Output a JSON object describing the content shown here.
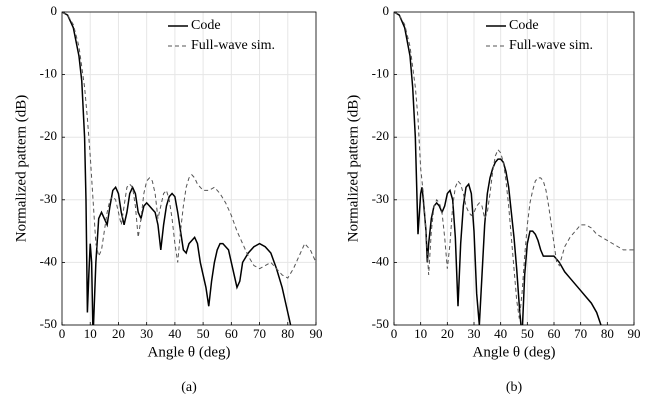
{
  "chart_data": [
    {
      "type": "line",
      "caption": "(a)",
      "x_label": "Angle θ (deg)",
      "y_label": "Normalized pattern (dB)",
      "xlim": [
        0,
        90
      ],
      "ylim": [
        -50,
        0
      ],
      "xticks": [
        0,
        10,
        20,
        30,
        40,
        50,
        60,
        70,
        80,
        90
      ],
      "yticks": [
        -50,
        -40,
        -30,
        -20,
        -10,
        0
      ],
      "grid": true,
      "legend": "upper right",
      "series": [
        {
          "name": "Code",
          "color": "#000000",
          "line_style": "solid",
          "x": [
            0,
            2,
            4,
            6,
            7,
            8,
            8.5,
            9,
            9.5,
            10,
            10.5,
            11,
            12,
            13,
            14,
            15,
            16,
            17,
            18,
            19,
            20,
            21,
            22,
            23,
            24,
            25,
            26,
            27,
            28,
            29,
            30,
            31,
            32,
            33,
            34,
            35,
            36,
            37,
            38,
            39,
            40,
            41,
            42,
            43,
            44,
            45,
            46,
            47,
            48,
            49,
            50,
            51,
            52,
            53,
            54,
            55,
            56,
            57,
            58,
            59,
            60,
            61,
            62,
            63,
            64,
            66,
            68,
            70,
            72,
            74,
            76,
            78,
            80,
            82
          ],
          "values": [
            0,
            -0.5,
            -2.5,
            -7,
            -11,
            -20,
            -30,
            -48,
            -42,
            -37,
            -40,
            -52,
            -40,
            -33,
            -32,
            -33,
            -34,
            -31,
            -28.5,
            -28,
            -29,
            -32,
            -34,
            -32,
            -29,
            -28,
            -29,
            -32,
            -33,
            -31,
            -30.5,
            -31,
            -31.5,
            -32,
            -34,
            -38,
            -34,
            -31,
            -29.5,
            -29,
            -29.5,
            -32,
            -35,
            -38,
            -38.5,
            -37,
            -36.5,
            -36,
            -37,
            -40,
            -42,
            -44,
            -47,
            -43,
            -40,
            -38,
            -37,
            -37,
            -37.5,
            -38,
            -40,
            -42,
            -44,
            -43,
            -40,
            -38.5,
            -37.5,
            -37,
            -37.5,
            -38.5,
            -41,
            -44,
            -48,
            -52
          ]
        },
        {
          "name": "Full-wave sim.",
          "color": "#555555",
          "line_style": "dashed",
          "x": [
            0,
            2,
            4,
            6,
            8,
            9,
            10,
            11,
            12,
            13,
            14,
            15,
            16,
            17,
            18,
            19,
            20,
            21,
            22,
            23,
            24,
            25,
            26,
            27,
            28,
            29,
            30,
            31,
            32,
            33,
            34,
            35,
            36,
            37,
            38,
            39,
            40,
            41,
            42,
            43,
            44,
            45,
            46,
            47,
            48,
            50,
            52,
            54,
            56,
            58,
            60,
            62,
            64,
            66,
            68,
            70,
            72,
            74,
            76,
            78,
            80,
            82,
            84,
            86,
            88,
            90
          ],
          "values": [
            0,
            -0.5,
            -2,
            -5.5,
            -12,
            -17,
            -23,
            -30,
            -37,
            -39,
            -38,
            -35,
            -32,
            -30,
            -29.5,
            -30,
            -32,
            -34,
            -31,
            -28,
            -27.5,
            -28,
            -31,
            -36,
            -33,
            -29,
            -27,
            -26.5,
            -27,
            -29,
            -33,
            -31,
            -29,
            -28.5,
            -30,
            -33,
            -37,
            -40,
            -35,
            -31,
            -28,
            -26.5,
            -26,
            -26.5,
            -27.5,
            -28.5,
            -28.5,
            -28,
            -29,
            -30.5,
            -32.5,
            -35,
            -37,
            -39,
            -40.5,
            -41,
            -40.5,
            -40,
            -41,
            -42,
            -42.5,
            -41,
            -39,
            -37,
            -38,
            -40
          ]
        }
      ]
    },
    {
      "type": "line",
      "caption": "(b)",
      "x_label": "Angle θ (deg)",
      "y_label": "Normalized pattern (dB)",
      "xlim": [
        0,
        90
      ],
      "ylim": [
        -50,
        0
      ],
      "xticks": [
        0,
        10,
        20,
        30,
        40,
        50,
        60,
        70,
        80,
        90
      ],
      "yticks": [
        -50,
        -40,
        -30,
        -20,
        -10,
        0
      ],
      "grid": true,
      "legend": "upper right",
      "series": [
        {
          "name": "Code",
          "color": "#000000",
          "line_style": "solid",
          "x": [
            0,
            2,
            4,
            6,
            7,
            8,
            9,
            10,
            10.5,
            11,
            12,
            12.5,
            13,
            14,
            15,
            16,
            17,
            18,
            19,
            20,
            21,
            22,
            23,
            24,
            25,
            26,
            27,
            28,
            29,
            30,
            31,
            32,
            33,
            34,
            35,
            36,
            37,
            38,
            39,
            40,
            41,
            42,
            43,
            44,
            45,
            46,
            47,
            48,
            49,
            50,
            51,
            52,
            53,
            54,
            55,
            56,
            58,
            60,
            62,
            64,
            66,
            68,
            70,
            72,
            74,
            76,
            78
          ],
          "values": [
            0,
            -0.5,
            -2.5,
            -7,
            -12,
            -20,
            -35.5,
            -29,
            -28,
            -30,
            -35,
            -40,
            -37,
            -33,
            -31,
            -30.5,
            -31,
            -32,
            -31,
            -29,
            -28.5,
            -30,
            -36,
            -47,
            -37,
            -31,
            -28,
            -27.5,
            -29,
            -35,
            -45,
            -50,
            -42,
            -34,
            -29,
            -26.5,
            -25,
            -24,
            -23.5,
            -23.5,
            -24,
            -25.5,
            -28,
            -32,
            -36,
            -41,
            -47,
            -52,
            -42,
            -37,
            -35,
            -35,
            -35.5,
            -36.5,
            -38,
            -39,
            -39,
            -39,
            -40,
            -41.5,
            -42.5,
            -43.5,
            -44.5,
            -45.5,
            -46.5,
            -48,
            -50.5
          ]
        },
        {
          "name": "Full-wave sim.",
          "color": "#555555",
          "line_style": "dashed",
          "x": [
            0,
            2,
            4,
            6,
            8,
            9,
            10,
            11,
            12,
            13,
            14,
            15,
            16,
            17,
            18,
            19,
            20,
            21,
            22,
            23,
            24,
            25,
            26,
            27,
            28,
            29,
            30,
            31,
            32,
            33,
            34,
            35,
            36,
            37,
            38,
            39,
            40,
            41,
            42,
            43,
            44,
            45,
            46,
            47,
            48,
            49,
            50,
            51,
            52,
            53,
            54,
            55,
            56,
            57,
            58,
            59,
            60,
            61,
            62,
            63,
            64,
            66,
            68,
            70,
            72,
            74,
            76,
            78,
            80,
            82,
            84,
            86,
            88,
            90
          ],
          "values": [
            0,
            -0.5,
            -2,
            -5.5,
            -12,
            -17,
            -25,
            -29,
            -35,
            -42,
            -35,
            -31,
            -30,
            -30.5,
            -32,
            -36,
            -41,
            -37,
            -31,
            -28,
            -27,
            -27.5,
            -29,
            -31,
            -32,
            -32.5,
            -32,
            -31,
            -30.5,
            -31,
            -33,
            -32,
            -29,
            -25.5,
            -23,
            -22,
            -22.5,
            -24,
            -27,
            -31,
            -36,
            -41,
            -46,
            -49,
            -45,
            -39,
            -34,
            -30.5,
            -28.5,
            -27,
            -26.5,
            -26.5,
            -27,
            -28.5,
            -31,
            -34,
            -37,
            -40,
            -40.5,
            -39,
            -37.5,
            -36,
            -35,
            -34,
            -34,
            -34.5,
            -35.5,
            -36,
            -36.5,
            -37,
            -37.5,
            -38,
            -38,
            -38
          ]
        }
      ]
    }
  ]
}
